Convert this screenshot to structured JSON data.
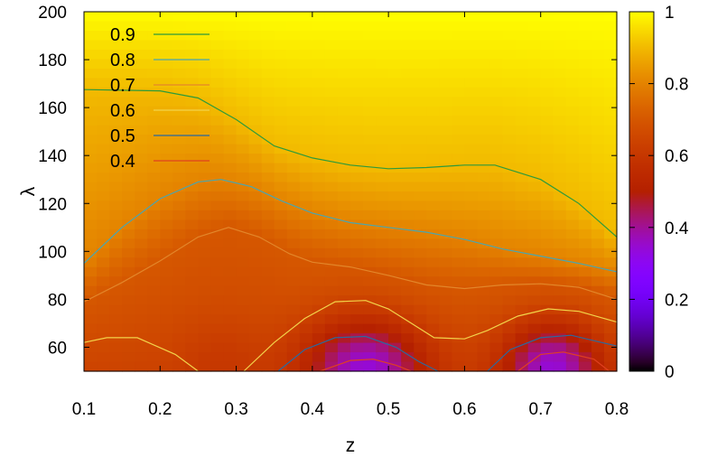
{
  "chart_data": {
    "type": "heatmap",
    "title": "",
    "xlabel": "z",
    "ylabel": "λ",
    "xlim": [
      0.1,
      0.8
    ],
    "ylim": [
      50,
      200
    ],
    "x_ticks": [
      "0.1",
      "0.2",
      "0.3",
      "0.4",
      "0.5",
      "0.6",
      "0.7",
      "0.8"
    ],
    "y_ticks": [
      "60",
      "80",
      "100",
      "120",
      "140",
      "160",
      "180",
      "200"
    ],
    "colorbar": {
      "range": [
        0,
        1
      ],
      "ticks": [
        "0",
        "0.2",
        "0.4",
        "0.6",
        "0.8",
        "1"
      ],
      "palette": "gnuplot-rgbformulae-7-5-15"
    },
    "legend_position": "top-left",
    "contours": [
      {
        "level": "0.9",
        "color": "#2e9b3a",
        "segments": [
          [
            [
              0.1,
              167.5
            ],
            [
              0.2,
              167
            ],
            [
              0.25,
              164
            ],
            [
              0.3,
              155
            ],
            [
              0.35,
              144
            ],
            [
              0.4,
              139
            ],
            [
              0.45,
              136
            ],
            [
              0.5,
              134.5
            ],
            [
              0.55,
              135
            ],
            [
              0.6,
              136
            ],
            [
              0.64,
              136
            ],
            [
              0.7,
              130
            ],
            [
              0.75,
              120
            ],
            [
              0.8,
              106
            ]
          ]
        ]
      },
      {
        "level": "0.8",
        "color": "#4aa6b0",
        "segments": [
          [
            [
              0.1,
              95
            ],
            [
              0.15,
              110
            ],
            [
              0.2,
              122
            ],
            [
              0.25,
              129
            ],
            [
              0.28,
              130
            ],
            [
              0.32,
              127
            ],
            [
              0.36,
              121
            ],
            [
              0.4,
              116
            ],
            [
              0.45,
              112
            ],
            [
              0.5,
              110
            ],
            [
              0.55,
              108
            ],
            [
              0.6,
              105
            ],
            [
              0.65,
              101
            ],
            [
              0.7,
              98
            ],
            [
              0.75,
              95
            ],
            [
              0.8,
              91.5
            ]
          ]
        ]
      },
      {
        "level": "0.7",
        "color": "#e3862a",
        "segments": [
          [
            [
              0.1,
              79
            ],
            [
              0.15,
              87
            ],
            [
              0.2,
              96
            ],
            [
              0.25,
              106
            ],
            [
              0.29,
              110
            ],
            [
              0.33,
              106
            ],
            [
              0.37,
              99
            ],
            [
              0.4,
              95.5
            ],
            [
              0.45,
              93.5
            ],
            [
              0.5,
              90
            ],
            [
              0.55,
              86
            ],
            [
              0.6,
              84.5
            ],
            [
              0.65,
              86
            ],
            [
              0.7,
              86.5
            ],
            [
              0.75,
              85
            ],
            [
              0.8,
              80
            ]
          ]
        ]
      },
      {
        "level": "0.6",
        "color": "#f2d34a",
        "segments": [
          [
            [
              0.1,
              62
            ],
            [
              0.13,
              64
            ],
            [
              0.17,
              64
            ],
            [
              0.22,
              57
            ],
            [
              0.25,
              50
            ]
          ],
          [
            [
              0.31,
              50
            ],
            [
              0.35,
              62
            ],
            [
              0.39,
              72
            ],
            [
              0.43,
              79
            ],
            [
              0.47,
              79.5
            ],
            [
              0.5,
              76
            ],
            [
              0.53,
              70
            ],
            [
              0.56,
              64
            ],
            [
              0.6,
              63.5
            ],
            [
              0.63,
              67
            ],
            [
              0.67,
              73
            ],
            [
              0.71,
              76
            ],
            [
              0.75,
              75
            ],
            [
              0.8,
              70.5
            ]
          ]
        ]
      },
      {
        "level": "0.5",
        "color": "#2a6aa0",
        "segments": [
          [
            [
              0.355,
              50
            ],
            [
              0.39,
              59
            ],
            [
              0.43,
              64
            ],
            [
              0.47,
              64.5
            ],
            [
              0.51,
              60
            ],
            [
              0.54,
              54
            ],
            [
              0.565,
              50
            ]
          ],
          [
            [
              0.63,
              50
            ],
            [
              0.66,
              59
            ],
            [
              0.7,
              64
            ],
            [
              0.74,
              65
            ],
            [
              0.78,
              62
            ],
            [
              0.8,
              60.5
            ]
          ]
        ]
      },
      {
        "level": "0.4",
        "color": "#e04020",
        "segments": [
          [
            [
              0.41,
              50
            ],
            [
              0.45,
              54.5
            ],
            [
              0.48,
              55
            ],
            [
              0.51,
              52.5
            ],
            [
              0.53,
              50
            ]
          ],
          [
            [
              0.67,
              50
            ],
            [
              0.7,
              57
            ],
            [
              0.73,
              58
            ],
            [
              0.77,
              55
            ],
            [
              0.79,
              50
            ]
          ]
        ]
      }
    ]
  }
}
